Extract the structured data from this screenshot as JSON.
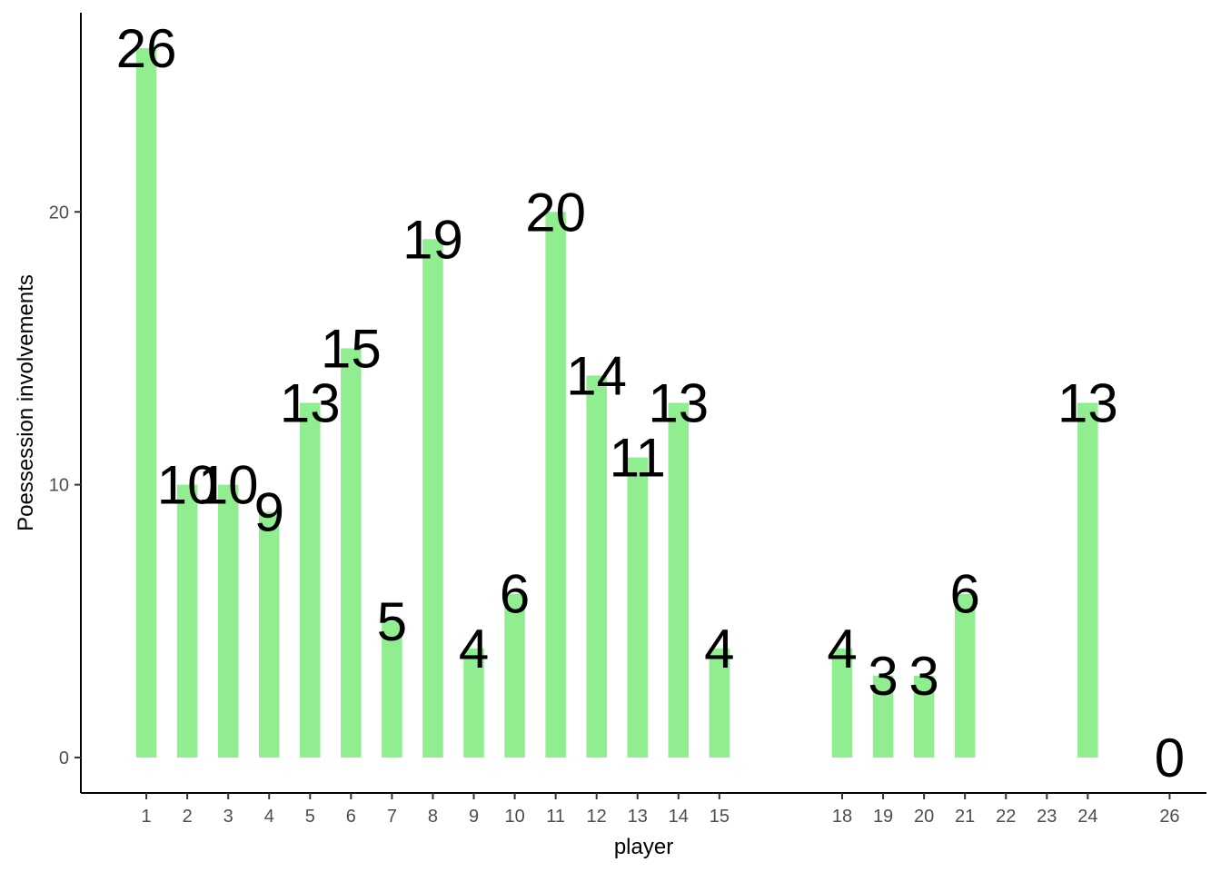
{
  "chart_data": {
    "type": "bar",
    "xlabel": "player",
    "ylabel": "Poessession involvements",
    "ylim": [
      -1.3,
      27.3
    ],
    "xlim": [
      -0.6,
      26.9
    ],
    "y_ticks": [
      0,
      10,
      20
    ],
    "x_ticks": [
      1,
      2,
      3,
      4,
      5,
      6,
      7,
      8,
      9,
      10,
      11,
      12,
      13,
      14,
      15,
      18,
      19,
      20,
      21,
      22,
      23,
      24,
      26
    ],
    "bar_color": "#90EE90",
    "grid": false,
    "legend": "none",
    "x": [
      1,
      2,
      3,
      4,
      5,
      6,
      7,
      8,
      9,
      10,
      11,
      12,
      13,
      14,
      15,
      18,
      19,
      20,
      21,
      24,
      26
    ],
    "values": [
      26,
      10,
      10,
      9,
      13,
      15,
      5,
      19,
      4,
      6,
      20,
      14,
      11,
      13,
      4,
      4,
      3,
      3,
      6,
      13,
      0
    ]
  }
}
